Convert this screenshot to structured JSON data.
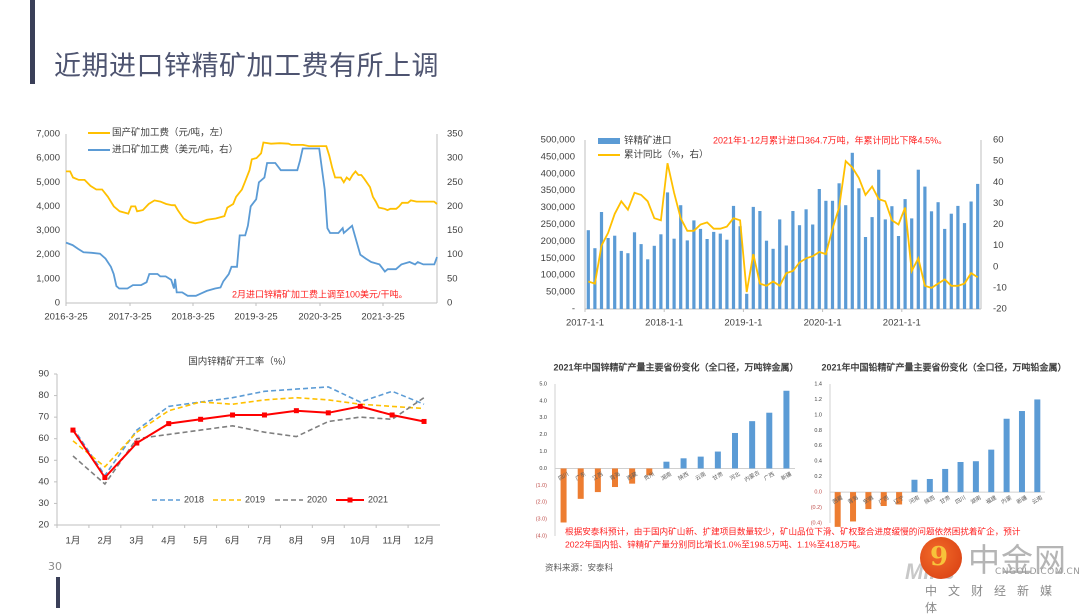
{
  "page": {
    "title": "近期进口锌精矿加工费有所上调",
    "page_number": "30",
    "source_note": "资料来源：安泰科",
    "forecast_note_line1": "根据安泰科预计，由于国内矿山新、扩建项目数量较少，矿山品位下滑、矿权整合进度缓慢的问题依然困扰着矿企，预计",
    "forecast_note_line2": "2022年国内铅、锌精矿产量分别同比增长1.0%至198.5万吨、1.1%至418万吨。",
    "logo": {
      "mark": "9",
      "name": "中金网",
      "prefix": "Mine",
      "url": "CNGOLD.COM.CN",
      "tagline": "中文财经新媒体"
    },
    "colors": {
      "accent_bar": "#3a3f58",
      "title": "#4e5470",
      "annotation_red": "#ff2020"
    }
  },
  "chart_data": [
    {
      "id": "tc-fees",
      "type": "line",
      "title": "",
      "xlabel": "",
      "ylabel_left": "元/吨",
      "ylabel_right": "美元/吨",
      "x_ticks": [
        "2016-3-25",
        "2017-3-25",
        "2018-3-25",
        "2019-3-25",
        "2020-3-25",
        "2021-3-25"
      ],
      "x_range_years": [
        2016.23,
        2022.05
      ],
      "ylim_left": [
        0,
        7000
      ],
      "ylim_right": [
        0,
        350
      ],
      "y_ticks_left": [
        "0",
        "1,000",
        "2,000",
        "3,000",
        "4,000",
        "5,000",
        "6,000",
        "7,000"
      ],
      "y_ticks_right": [
        "0",
        "50",
        "100",
        "150",
        "200",
        "250",
        "300",
        "350"
      ],
      "legend_position": "top-left",
      "annotation": "2月进口锌精矿加工费上调至100美元/干吨。",
      "series": [
        {
          "name": "国产矿加工费（元/吨，左）",
          "axis": "left",
          "color": "#ffc000",
          "points": [
            [
              2016.23,
              5450
            ],
            [
              2016.3,
              5450
            ],
            [
              2016.35,
              5200
            ],
            [
              2016.45,
              5100
            ],
            [
              2016.55,
              5100
            ],
            [
              2016.65,
              4850
            ],
            [
              2016.75,
              4700
            ],
            [
              2016.85,
              4700
            ],
            [
              2016.95,
              4400
            ],
            [
              2017.05,
              4000
            ],
            [
              2017.15,
              3800
            ],
            [
              2017.3,
              3700
            ],
            [
              2017.35,
              4000
            ],
            [
              2017.42,
              4000
            ],
            [
              2017.45,
              3800
            ],
            [
              2017.55,
              3850
            ],
            [
              2017.65,
              4100
            ],
            [
              2017.75,
              4250
            ],
            [
              2017.85,
              4200
            ],
            [
              2017.95,
              4100
            ],
            [
              2018.05,
              4050
            ],
            [
              2018.1,
              4050
            ],
            [
              2018.15,
              3850
            ],
            [
              2018.25,
              3500
            ],
            [
              2018.35,
              3350
            ],
            [
              2018.45,
              3300
            ],
            [
              2018.55,
              3350
            ],
            [
              2018.65,
              3450
            ],
            [
              2018.8,
              3500
            ],
            [
              2018.95,
              3600
            ],
            [
              2019.0,
              3950
            ],
            [
              2019.1,
              4100
            ],
            [
              2019.15,
              4400
            ],
            [
              2019.25,
              4700
            ],
            [
              2019.3,
              5000
            ],
            [
              2019.38,
              5500
            ],
            [
              2019.42,
              5950
            ],
            [
              2019.5,
              6000
            ],
            [
              2019.58,
              6200
            ],
            [
              2019.62,
              6650
            ],
            [
              2019.75,
              6600
            ],
            [
              2019.9,
              6620
            ],
            [
              2020.05,
              6600
            ],
            [
              2020.1,
              6550
            ],
            [
              2020.3,
              6550
            ],
            [
              2020.4,
              6500
            ],
            [
              2020.6,
              6500
            ],
            [
              2020.7,
              6500
            ],
            [
              2020.75,
              6100
            ],
            [
              2020.8,
              5600
            ],
            [
              2020.85,
              5200
            ],
            [
              2020.95,
              5200
            ],
            [
              2021.0,
              5000
            ],
            [
              2021.05,
              5200
            ],
            [
              2021.1,
              5100
            ],
            [
              2021.15,
              5300
            ],
            [
              2021.2,
              5450
            ],
            [
              2021.25,
              5300
            ],
            [
              2021.3,
              5300
            ],
            [
              2021.35,
              5150
            ],
            [
              2021.45,
              4800
            ],
            [
              2021.5,
              4400
            ],
            [
              2021.55,
              4200
            ],
            [
              2021.6,
              3950
            ],
            [
              2021.7,
              3900
            ],
            [
              2021.75,
              3850
            ],
            [
              2021.8,
              3900
            ],
            [
              2021.9,
              3900
            ],
            [
              2021.95,
              4000
            ],
            [
              2022.0,
              4150
            ],
            [
              2022.1,
              4150
            ],
            [
              2022.15,
              4250
            ],
            [
              2022.25,
              4200
            ],
            [
              2022.4,
              4200
            ],
            [
              2022.55,
              4200
            ],
            [
              2022.6,
              4100
            ]
          ]
        },
        {
          "name": "进口矿加工费（美元/吨，右）",
          "axis": "right",
          "color": "#5b9bd5",
          "points": [
            [
              2016.23,
              125
            ],
            [
              2016.35,
              120
            ],
            [
              2016.45,
              112
            ],
            [
              2016.55,
              105
            ],
            [
              2016.7,
              104
            ],
            [
              2016.85,
              102
            ],
            [
              2016.95,
              92
            ],
            [
              2017.05,
              75
            ],
            [
              2017.1,
              60
            ],
            [
              2017.15,
              35
            ],
            [
              2017.2,
              30
            ],
            [
              2017.35,
              30
            ],
            [
              2017.45,
              37
            ],
            [
              2017.6,
              37
            ],
            [
              2017.7,
              43
            ],
            [
              2017.75,
              60
            ],
            [
              2017.9,
              60
            ],
            [
              2017.95,
              55
            ],
            [
              2018.05,
              55
            ],
            [
              2018.15,
              48
            ],
            [
              2018.2,
              30
            ],
            [
              2018.22,
              50
            ],
            [
              2018.25,
              22
            ],
            [
              2018.35,
              22
            ],
            [
              2018.45,
              15
            ],
            [
              2018.6,
              15
            ],
            [
              2018.7,
              20
            ],
            [
              2018.8,
              25
            ],
            [
              2018.95,
              30
            ],
            [
              2019.05,
              32
            ],
            [
              2019.1,
              45
            ],
            [
              2019.2,
              60
            ],
            [
              2019.25,
              75
            ],
            [
              2019.35,
              75
            ],
            [
              2019.4,
              140
            ],
            [
              2019.5,
              140
            ],
            [
              2019.55,
              160
            ],
            [
              2019.6,
              200
            ],
            [
              2019.7,
              215
            ],
            [
              2019.75,
              250
            ],
            [
              2019.85,
              260
            ],
            [
              2019.9,
              290
            ],
            [
              2020.05,
              290
            ],
            [
              2020.15,
              275
            ],
            [
              2020.35,
              275
            ],
            [
              2020.45,
              275
            ],
            [
              2020.5,
              295
            ],
            [
              2020.55,
              320
            ],
            [
              2020.85,
              320
            ],
            [
              2020.95,
              235
            ],
            [
              2021.0,
              155
            ],
            [
              2021.05,
              145
            ],
            [
              2021.2,
              145
            ],
            [
              2021.28,
              155
            ],
            [
              2021.3,
              145
            ],
            [
              2021.35,
              150
            ],
            [
              2021.45,
              160
            ],
            [
              2021.5,
              140
            ],
            [
              2021.6,
              100
            ],
            [
              2021.7,
              92
            ],
            [
              2021.8,
              85
            ],
            [
              2021.95,
              80
            ],
            [
              2022.05,
              65
            ],
            [
              2022.1,
              70
            ],
            [
              2022.25,
              70
            ],
            [
              2022.35,
              80
            ],
            [
              2022.5,
              85
            ],
            [
              2022.6,
              80
            ],
            [
              2022.65,
              85
            ],
            [
              2022.75,
              80
            ],
            [
              2022.95,
              80
            ],
            [
              2023.0,
              95
            ]
          ]
        }
      ]
    },
    {
      "id": "imports",
      "type": "bar",
      "title": "",
      "annotation": "2021年1-12月累计进口364.7万吨，年累计同比下降4.5%。",
      "x_ticks": [
        "2017-1-1",
        "2018-1-1",
        "2019-1-1",
        "2020-1-1",
        "2021-1-1"
      ],
      "ylim_left": [
        0,
        500000
      ],
      "ylim_right": [
        -20,
        60
      ],
      "y_ticks_left": [
        "-",
        "50,000",
        "100,000",
        "150,000",
        "200,000",
        "250,000",
        "300,000",
        "350,000",
        "400,000",
        "450,000",
        "500,000"
      ],
      "y_ticks_right": [
        "-20",
        "-10",
        "0",
        "10",
        "20",
        "30",
        "40",
        "50",
        "60"
      ],
      "legend_position": "top-left",
      "series": [
        {
          "name": "锌精矿进口",
          "axis": "left",
          "type": "bar",
          "color": "#5b9bd5",
          "values": [
            233000,
            180000,
            287000,
            210000,
            217000,
            172000,
            165000,
            227000,
            192000,
            147000,
            187000,
            221000,
            345000,
            208000,
            307000,
            203000,
            262000,
            237000,
            207000,
            228000,
            223000,
            205000,
            305000,
            245000,
            45000,
            302000,
            290000,
            202000,
            178000,
            265000,
            188000,
            290000,
            248000,
            295000,
            250000,
            355000,
            320000,
            320000,
            372000,
            307000,
            462000,
            357000,
            213000,
            272000,
            412000,
            265000,
            304000,
            216000,
            325000,
            268000,
            412000,
            362000,
            289000,
            316000,
            237000,
            282000,
            305000,
            254000,
            318000,
            370000
          ]
        },
        {
          "name": "累计同比（%，右）",
          "axis": "right",
          "type": "line",
          "color": "#ffc000",
          "values": [
            -7,
            -8,
            10,
            16,
            25,
            31,
            27,
            35,
            34,
            31,
            23,
            22,
            49,
            35,
            23,
            17,
            17,
            20,
            21,
            18,
            18,
            19,
            23,
            22,
            -12,
            6,
            -8,
            -9,
            -7,
            -9,
            -3,
            -2,
            2,
            4,
            5,
            7,
            6,
            18,
            28,
            50,
            47,
            42,
            34,
            38,
            32,
            31,
            22,
            20,
            28,
            -2,
            4,
            -9,
            -10,
            -8,
            -6,
            -9,
            -9,
            -8,
            -3,
            -5
          ]
        }
      ]
    },
    {
      "id": "utilization",
      "type": "line",
      "title": "国内锌精矿开工率（%）",
      "categories": [
        "1月",
        "2月",
        "3月",
        "4月",
        "5月",
        "6月",
        "7月",
        "8月",
        "9月",
        "10月",
        "11月",
        "12月"
      ],
      "ylim": [
        20,
        90
      ],
      "y_ticks": [
        "20",
        "30",
        "40",
        "50",
        "60",
        "70",
        "80",
        "90"
      ],
      "legend_position": "bottom-center",
      "series": [
        {
          "name": "2018",
          "color": "#5b9bd5",
          "style": "dashed",
          "values": [
            65,
            43,
            64,
            75,
            77,
            79,
            82,
            83,
            84,
            77,
            82,
            76
          ]
        },
        {
          "name": "2019",
          "color": "#ffc000",
          "style": "dashed",
          "values": [
            59,
            47,
            63,
            73,
            77,
            76,
            78,
            79,
            78,
            76,
            75,
            74
          ]
        },
        {
          "name": "2020",
          "color": "#7f7f7f",
          "style": "dashed",
          "values": [
            52,
            39,
            60,
            62,
            64,
            66,
            63,
            61,
            68,
            70,
            69,
            79
          ]
        },
        {
          "name": "2021",
          "color": "#ff0000",
          "style": "solid-marker",
          "values": [
            64,
            42,
            58,
            67,
            69,
            71,
            71,
            73,
            72,
            75,
            71,
            68
          ]
        }
      ]
    },
    {
      "id": "zinc-provinces",
      "type": "bar",
      "title": "2021年中国锌精矿产量主要省份变化（全口径，万吨锌金属）",
      "categories": [
        "四川",
        "广东",
        "江西",
        "青海",
        "西藏",
        "贵州",
        "湖南",
        "陕西",
        "云南",
        "甘肃",
        "河北",
        "内蒙古",
        "广西",
        "新疆"
      ],
      "values": [
        -3.2,
        -1.8,
        -1.4,
        -1.1,
        -0.9,
        -0.4,
        0.4,
        0.6,
        0.7,
        1.0,
        2.1,
        2.8,
        3.3,
        4.6
      ],
      "ylim": [
        -4.0,
        5.0
      ],
      "y_ticks": [
        "(4.0)",
        "(3.0)",
        "(2.0)",
        "(1.0)",
        "0.0",
        "1.0",
        "2.0",
        "3.0",
        "4.0",
        "5.0"
      ],
      "colors": {
        "negative": "#ed7d31",
        "positive": "#5b9bd5"
      }
    },
    {
      "id": "lead-provinces",
      "type": "bar",
      "title": "2021年中国铅精矿产量主要省份变化（全口径，万吨铅金属）",
      "categories": [
        "西藏",
        "青海",
        "安徽",
        "广西",
        "辽宁",
        "河南",
        "陕西",
        "甘肃",
        "四川",
        "湖南",
        "福建",
        "内蒙",
        "新疆",
        "云南"
      ],
      "values": [
        -0.45,
        -0.38,
        -0.22,
        -0.18,
        -0.16,
        0.16,
        0.17,
        0.3,
        0.39,
        0.4,
        0.55,
        0.95,
        1.05,
        1.2
      ],
      "ylim": [
        -0.4,
        1.4
      ],
      "y_ticks": [
        "(0.4)",
        "(0.2)",
        "0.0",
        "0.2",
        "0.4",
        "0.6",
        "0.8",
        "1.0",
        "1.2",
        "1.4"
      ],
      "colors": {
        "negative": "#ed7d31",
        "positive": "#5b9bd5"
      }
    }
  ]
}
